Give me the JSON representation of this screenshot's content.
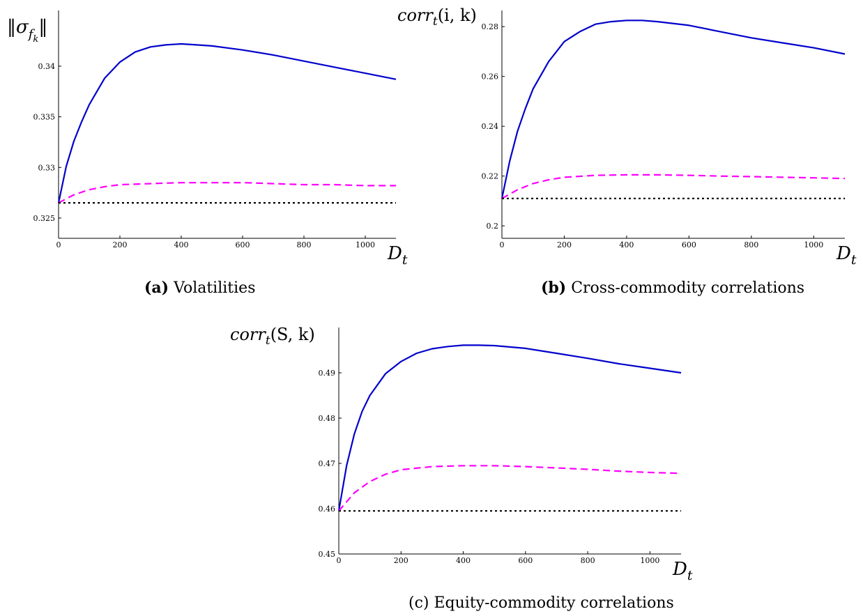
{
  "chart_data": [
    {
      "id": "a",
      "type": "line",
      "ylabel": "‖σ_f_k‖",
      "xlabel": "D_t",
      "xlim": [
        0,
        1100
      ],
      "ylim": [
        0.323,
        0.3455
      ],
      "xticks": [
        0,
        200,
        400,
        600,
        800,
        1000
      ],
      "yticks": [
        0.325,
        0.33,
        0.335,
        0.34
      ],
      "ytick_labels": [
        "0.325",
        "0.33",
        "0.335",
        "0.34"
      ],
      "caption_tag": "(a)",
      "caption_text": "Volatilities",
      "series": [
        {
          "style": "solid",
          "color": "#0000cc",
          "x": [
            0,
            25,
            50,
            75,
            100,
            150,
            200,
            250,
            300,
            350,
            400,
            450,
            500,
            600,
            700,
            800,
            900,
            1000,
            1100
          ],
          "y": [
            0.3265,
            0.3301,
            0.3326,
            0.3345,
            0.3362,
            0.3388,
            0.3404,
            0.3414,
            0.3419,
            0.3421,
            0.3422,
            0.3421,
            0.342,
            0.3416,
            0.3411,
            0.3405,
            0.3399,
            0.3393,
            0.3387
          ]
        },
        {
          "style": "dashed",
          "color": "#ff00ff",
          "x": [
            0,
            50,
            100,
            150,
            200,
            300,
            400,
            500,
            600,
            700,
            800,
            900,
            1000,
            1100
          ],
          "y": [
            0.3265,
            0.3273,
            0.3278,
            0.3281,
            0.3283,
            0.3284,
            0.3285,
            0.3285,
            0.3285,
            0.3284,
            0.3283,
            0.3283,
            0.3282,
            0.3282
          ]
        },
        {
          "style": "dotted",
          "color": "#000000",
          "x": [
            0,
            1100
          ],
          "y": [
            0.3265,
            0.3265
          ]
        }
      ]
    },
    {
      "id": "b",
      "type": "line",
      "ylabel": "corr_t(i, k)",
      "xlabel": "D_t",
      "xlim": [
        0,
        1100
      ],
      "ylim": [
        0.195,
        0.2865
      ],
      "xticks": [
        0,
        200,
        400,
        600,
        800,
        1000
      ],
      "yticks": [
        0.2,
        0.22,
        0.24,
        0.26,
        0.28
      ],
      "ytick_labels": [
        "0.2",
        "0.22",
        "0.24",
        "0.26",
        "0.28"
      ],
      "caption_tag": "(b)",
      "caption_text": "Cross-commodity correlations",
      "series": [
        {
          "style": "solid",
          "color": "#0000cc",
          "x": [
            0,
            25,
            50,
            75,
            100,
            150,
            200,
            250,
            300,
            350,
            400,
            450,
            500,
            600,
            700,
            800,
            900,
            1000,
            1100
          ],
          "y": [
            0.211,
            0.226,
            0.238,
            0.247,
            0.255,
            0.266,
            0.274,
            0.278,
            0.281,
            0.282,
            0.2825,
            0.2825,
            0.282,
            0.2805,
            0.278,
            0.2755,
            0.2735,
            0.2715,
            0.269
          ]
        },
        {
          "style": "dashed",
          "color": "#ff00ff",
          "x": [
            0,
            50,
            100,
            150,
            200,
            300,
            400,
            500,
            600,
            700,
            800,
            900,
            1000,
            1100
          ],
          "y": [
            0.211,
            0.2145,
            0.217,
            0.2185,
            0.2195,
            0.2203,
            0.2205,
            0.2205,
            0.2203,
            0.22,
            0.2198,
            0.2195,
            0.2193,
            0.219
          ]
        },
        {
          "style": "dotted",
          "color": "#000000",
          "x": [
            0,
            1100
          ],
          "y": [
            0.211,
            0.211
          ]
        }
      ]
    },
    {
      "id": "c",
      "type": "line",
      "ylabel": "corr_t(S, k)",
      "xlabel": "D_t",
      "xlim": [
        0,
        1100
      ],
      "ylim": [
        0.45,
        0.5
      ],
      "xticks": [
        0,
        200,
        400,
        600,
        800,
        1000
      ],
      "yticks": [
        0.45,
        0.46,
        0.47,
        0.48,
        0.49
      ],
      "ytick_labels": [
        "0.45",
        "0.46",
        "0.47",
        "0.48",
        "0.49"
      ],
      "caption_tag": "",
      "caption_text": "(c) Equity-commodity correlations",
      "series": [
        {
          "style": "solid",
          "color": "#0000cc",
          "x": [
            0,
            25,
            50,
            75,
            100,
            150,
            200,
            250,
            300,
            350,
            400,
            450,
            500,
            600,
            700,
            800,
            900,
            1000,
            1100
          ],
          "y": [
            0.4595,
            0.4695,
            0.4765,
            0.4815,
            0.485,
            0.4898,
            0.4925,
            0.4943,
            0.4953,
            0.4958,
            0.4961,
            0.4961,
            0.496,
            0.4954,
            0.4943,
            0.4932,
            0.492,
            0.491,
            0.49
          ]
        },
        {
          "style": "dashed",
          "color": "#ff00ff",
          "x": [
            0,
            50,
            100,
            150,
            200,
            300,
            400,
            500,
            600,
            700,
            800,
            900,
            1000,
            1100
          ],
          "y": [
            0.4595,
            0.4635,
            0.466,
            0.4676,
            0.4686,
            0.4693,
            0.4695,
            0.4695,
            0.4693,
            0.469,
            0.4687,
            0.4683,
            0.468,
            0.4678
          ]
        },
        {
          "style": "dotted",
          "color": "#000000",
          "x": [
            0,
            1100
          ],
          "y": [
            0.4595,
            0.4595
          ]
        }
      ]
    }
  ]
}
